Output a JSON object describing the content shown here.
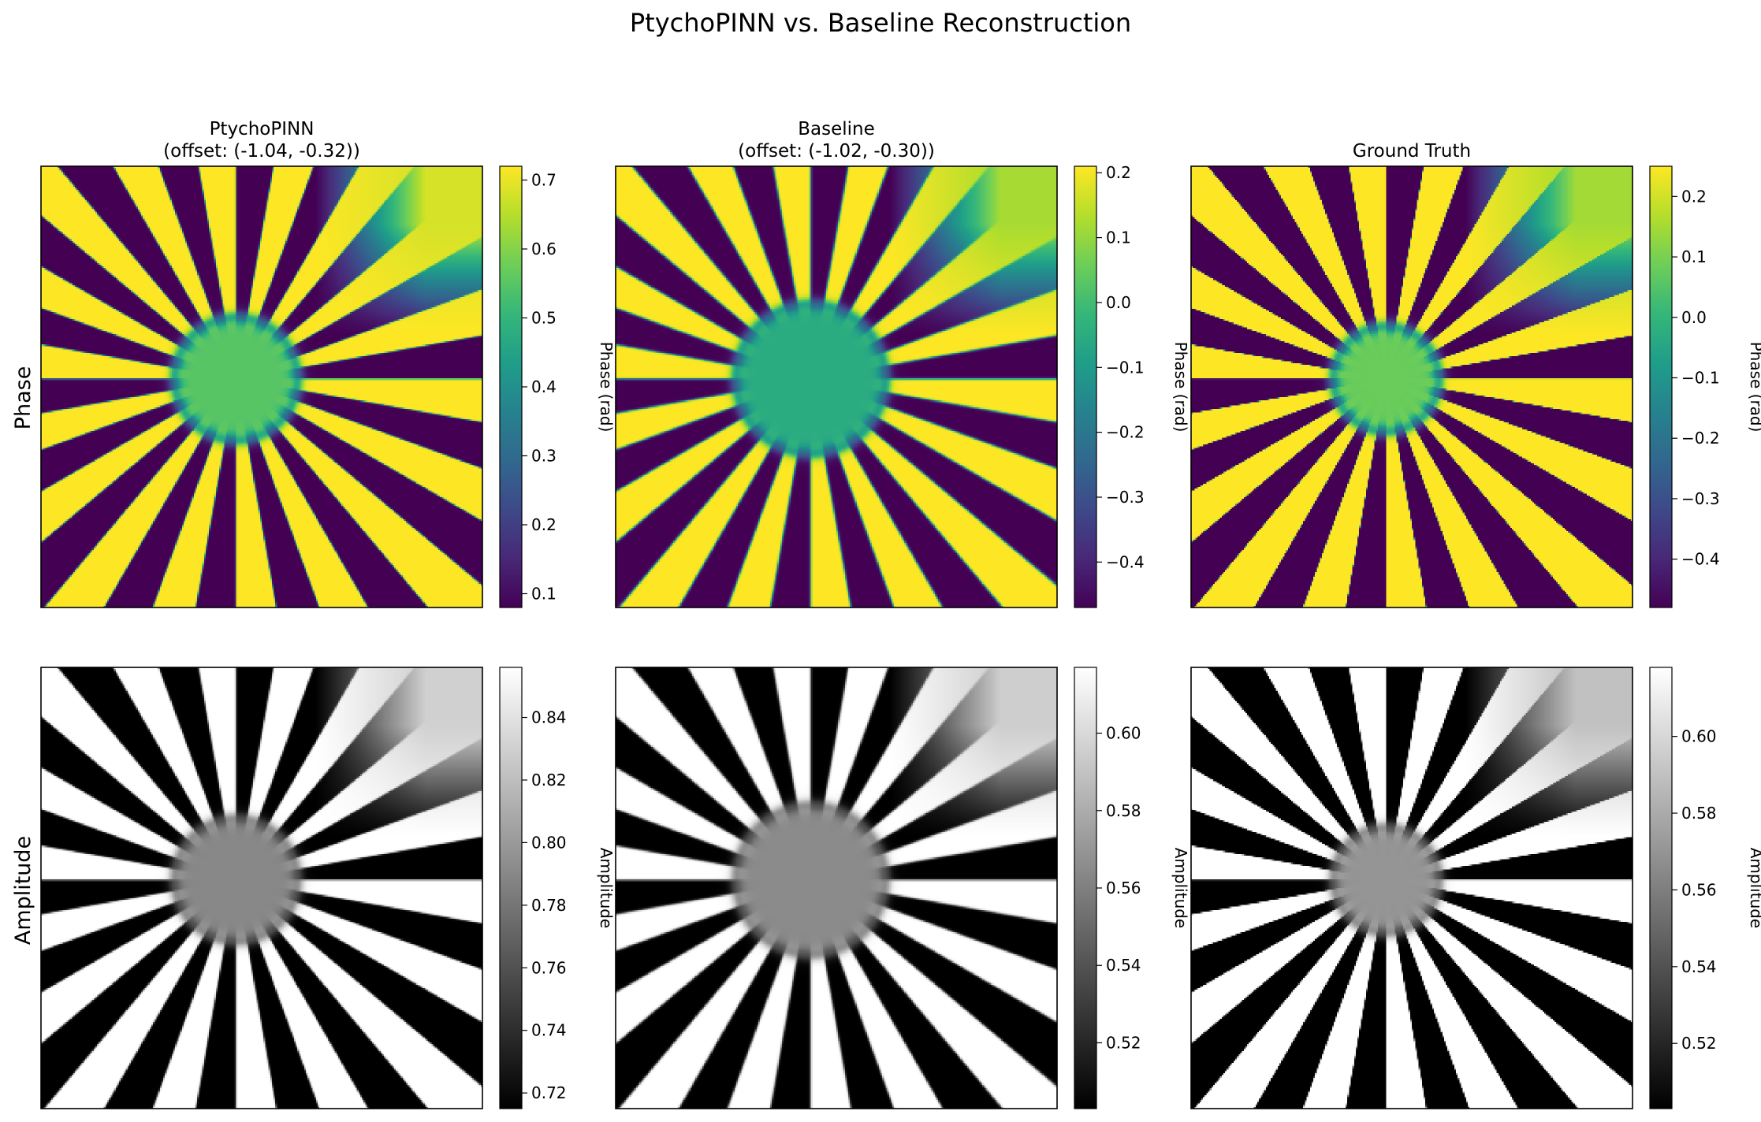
{
  "figure": {
    "title": "PtychoPINN vs. Baseline Reconstruction",
    "row_labels": [
      "Phase",
      "Amplitude"
    ]
  },
  "colormaps": {
    "viridis": [
      "#440154",
      "#482878",
      "#3e4989",
      "#31688e",
      "#26828e",
      "#1f9e89",
      "#35b779",
      "#6ece58",
      "#b5de2b",
      "#fde725"
    ],
    "gray": [
      "#000000",
      "#ffffff"
    ]
  },
  "chart_data": [
    {
      "type": "heatmap",
      "panel": "phase-ptychopinn",
      "title_lines": [
        "PtychoPINN",
        "(offset: (-1.04, -0.32))"
      ],
      "colormap": "viridis",
      "colorbar_label": "Phase (rad)",
      "vmin": 0.08,
      "vmax": 0.72,
      "ticks": [
        0.1,
        0.2,
        0.3,
        0.4,
        0.5,
        0.6,
        0.7
      ],
      "tick_labels": [
        "0.1",
        "0.2",
        "0.3",
        "0.4",
        "0.5",
        "0.6",
        "0.7"
      ],
      "pattern": {
        "spokes": 36,
        "center_radius": 0.14,
        "blur": 0.2,
        "center_value": 0.55,
        "background_value": 0.68
      }
    },
    {
      "type": "heatmap",
      "panel": "phase-baseline",
      "title_lines": [
        "Baseline",
        "(offset: (-1.02, -0.30))"
      ],
      "colormap": "viridis",
      "colorbar_label": "Phase (rad)",
      "vmin": -0.47,
      "vmax": 0.21,
      "ticks": [
        0.2,
        0.1,
        0.0,
        -0.1,
        -0.2,
        -0.3,
        -0.4
      ],
      "tick_labels": [
        "0.2",
        "0.1",
        "0.0",
        "−0.1",
        "−0.2",
        "−0.3",
        "−0.4"
      ],
      "pattern": {
        "spokes": 36,
        "center_radius": 0.17,
        "blur": 0.35,
        "center_value": -0.05,
        "background_value": 0.12
      }
    },
    {
      "type": "heatmap",
      "panel": "phase-ground-truth",
      "title_lines": [
        "Ground Truth"
      ],
      "colormap": "viridis",
      "colorbar_label": "Phase (rad)",
      "vmin": -0.48,
      "vmax": 0.25,
      "ticks": [
        0.2,
        0.1,
        0.0,
        -0.1,
        -0.2,
        -0.3,
        -0.4
      ],
      "tick_labels": [
        "0.2",
        "0.1",
        "0.0",
        "−0.1",
        "−0.2",
        "−0.3",
        "−0.4"
      ],
      "pattern": {
        "spokes": 36,
        "center_radius": 0.12,
        "blur": 0.08,
        "center_value": 0.08,
        "background_value": 0.15
      }
    },
    {
      "type": "heatmap",
      "panel": "amplitude-ptychopinn",
      "title_lines": [],
      "colormap": "gray",
      "colorbar_label": "Amplitude",
      "vmin": 0.715,
      "vmax": 0.856,
      "ticks": [
        0.84,
        0.82,
        0.8,
        0.78,
        0.76,
        0.74,
        0.72
      ],
      "tick_labels": [
        "0.84",
        "0.82",
        "0.80",
        "0.78",
        "0.76",
        "0.74",
        "0.72"
      ],
      "pattern": {
        "spokes": 36,
        "center_radius": 0.14,
        "blur": 0.25,
        "center_value": 0.79,
        "background_value": 0.83
      }
    },
    {
      "type": "heatmap",
      "panel": "amplitude-baseline",
      "title_lines": [],
      "colormap": "gray",
      "colorbar_label": "Amplitude",
      "vmin": 0.503,
      "vmax": 0.617,
      "ticks": [
        0.6,
        0.58,
        0.56,
        0.54,
        0.52
      ],
      "tick_labels": [
        "0.60",
        "0.58",
        "0.56",
        "0.54",
        "0.52"
      ],
      "pattern": {
        "spokes": 36,
        "center_radius": 0.17,
        "blur": 0.35,
        "center_value": 0.565,
        "background_value": 0.595
      }
    },
    {
      "type": "heatmap",
      "panel": "amplitude-ground-truth",
      "title_lines": [],
      "colormap": "gray",
      "colorbar_label": "Amplitude",
      "vmin": 0.503,
      "vmax": 0.618,
      "ticks": [
        0.6,
        0.58,
        0.56,
        0.54,
        0.52
      ],
      "tick_labels": [
        "0.60",
        "0.58",
        "0.56",
        "0.54",
        "0.52"
      ],
      "pattern": {
        "spokes": 36,
        "center_radius": 0.12,
        "blur": 0.12,
        "center_value": 0.57,
        "background_value": 0.59
      }
    }
  ]
}
